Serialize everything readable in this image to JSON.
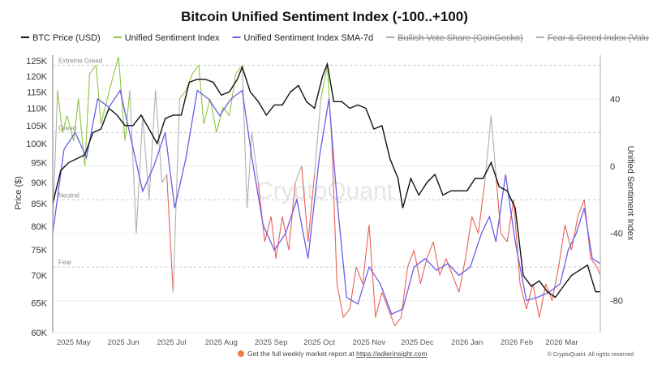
{
  "chart_data": {
    "type": "line",
    "title": "Bitcoin Unified Sentiment Index (-100..+100)",
    "legend": [
      {
        "name": "BTC Price (USD)",
        "color": "#111111",
        "visible": true
      },
      {
        "name": "Unified Sentiment Index",
        "color": "#8cc63f",
        "visible": true
      },
      {
        "name": "Unified Sentiment Index SMA-7d",
        "color": "#6b5ce7",
        "visible": true
      },
      {
        "name": "Bullish Vote Share (CoinGecko)",
        "color": "#999999",
        "visible": false
      },
      {
        "name": "Fear & Greed Index (Value)",
        "color": "#999999",
        "visible": false
      }
    ],
    "legend_placement": "top",
    "y_left": {
      "label": "Price ($)",
      "scale": "log",
      "range": [
        60000,
        127000
      ],
      "ticks": [
        125000,
        120000,
        115000,
        110000,
        105000,
        100000,
        95000,
        90000,
        85000,
        80000,
        75000,
        70000,
        65000,
        60000
      ],
      "tick_labels": [
        "125K",
        "120K",
        "115K",
        "110K",
        "105K",
        "100K",
        "95K",
        "90K",
        "85K",
        "80K",
        "75K",
        "70K",
        "65K",
        "60K"
      ]
    },
    "y_right": {
      "label": "Unified Sentiment Index",
      "range": [
        -99,
        66
      ],
      "ticks": [
        40,
        0,
        -40,
        -80
      ],
      "tick_labels": [
        "40",
        "0",
        "-40",
        "-80"
      ]
    },
    "x": {
      "range": [
        "2025-04-18",
        "2026-03-25"
      ],
      "ticks": [
        "2025-05-01",
        "2025-06-01",
        "2025-07-01",
        "2025-08-01",
        "2025-09-01",
        "2025-10-01",
        "2025-11-01",
        "2025-12-01",
        "2026-01-01",
        "2026-02-01",
        "2026-03-01"
      ],
      "tick_labels": [
        "2025 May",
        "2025 Jun",
        "2025 Jul",
        "2025 Aug",
        "2025 Sep",
        "2025 Oct",
        "2025 Nov",
        "2025 Dec",
        "2026 Jan",
        "2026 Feb",
        "2026 Mar"
      ]
    },
    "zones": [
      {
        "label": "Extreme Greed",
        "value": 60
      },
      {
        "label": "Greed",
        "value": 20
      },
      {
        "label": "Neutral",
        "value": -20
      },
      {
        "label": "Fear",
        "value": -60
      }
    ],
    "zone_colors": {
      "greed": "#8cc63f",
      "neutral": "#b0b0b0",
      "fear": "#e8625a"
    },
    "series": [
      {
        "name": "BTC Price (USD)",
        "axis": "left",
        "points": [
          [
            "2025-04-18",
            85000
          ],
          [
            "2025-04-23",
            93000
          ],
          [
            "2025-04-28",
            95000
          ],
          [
            "2025-05-03",
            96000
          ],
          [
            "2025-05-08",
            97000
          ],
          [
            "2025-05-13",
            103000
          ],
          [
            "2025-05-18",
            104000
          ],
          [
            "2025-05-23",
            110000
          ],
          [
            "2025-05-28",
            108000
          ],
          [
            "2025-06-02",
            105000
          ],
          [
            "2025-06-07",
            105000
          ],
          [
            "2025-06-12",
            108000
          ],
          [
            "2025-06-17",
            104000
          ],
          [
            "2025-06-22",
            100000
          ],
          [
            "2025-06-27",
            107000
          ],
          [
            "2025-07-02",
            108000
          ],
          [
            "2025-07-07",
            108000
          ],
          [
            "2025-07-12",
            118000
          ],
          [
            "2025-07-17",
            119000
          ],
          [
            "2025-07-22",
            119000
          ],
          [
            "2025-07-27",
            118000
          ],
          [
            "2025-08-01",
            114000
          ],
          [
            "2025-08-06",
            115000
          ],
          [
            "2025-08-11",
            119000
          ],
          [
            "2025-08-14",
            123000
          ],
          [
            "2025-08-19",
            115000
          ],
          [
            "2025-08-24",
            112000
          ],
          [
            "2025-08-29",
            108000
          ],
          [
            "2025-09-03",
            111000
          ],
          [
            "2025-09-08",
            111000
          ],
          [
            "2025-09-13",
            115000
          ],
          [
            "2025-09-18",
            117000
          ],
          [
            "2025-09-23",
            112000
          ],
          [
            "2025-09-28",
            110000
          ],
          [
            "2025-10-03",
            120000
          ],
          [
            "2025-10-06",
            124000
          ],
          [
            "2025-10-10",
            112000
          ],
          [
            "2025-10-15",
            112000
          ],
          [
            "2025-10-20",
            110000
          ],
          [
            "2025-10-25",
            111000
          ],
          [
            "2025-10-30",
            110000
          ],
          [
            "2025-11-04",
            104000
          ],
          [
            "2025-11-09",
            105000
          ],
          [
            "2025-11-14",
            96000
          ],
          [
            "2025-11-19",
            91000
          ],
          [
            "2025-11-22",
            84000
          ],
          [
            "2025-11-27",
            91000
          ],
          [
            "2025-12-02",
            87000
          ],
          [
            "2025-12-07",
            90000
          ],
          [
            "2025-12-12",
            92000
          ],
          [
            "2025-12-17",
            87000
          ],
          [
            "2025-12-22",
            88000
          ],
          [
            "2025-12-27",
            88000
          ],
          [
            "2026-01-01",
            88000
          ],
          [
            "2026-01-06",
            91000
          ],
          [
            "2026-01-11",
            91000
          ],
          [
            "2026-01-16",
            95000
          ],
          [
            "2026-01-21",
            89000
          ],
          [
            "2026-01-26",
            88000
          ],
          [
            "2026-01-31",
            84000
          ],
          [
            "2026-02-05",
            70000
          ],
          [
            "2026-02-10",
            68000
          ],
          [
            "2026-02-15",
            69000
          ],
          [
            "2026-02-20",
            67000
          ],
          [
            "2026-02-25",
            66000
          ],
          [
            "2026-03-02",
            68000
          ],
          [
            "2026-03-07",
            70000
          ],
          [
            "2026-03-12",
            71000
          ],
          [
            "2026-03-17",
            72000
          ],
          [
            "2026-03-22",
            67000
          ],
          [
            "2026-03-25",
            67000
          ]
        ]
      },
      {
        "name": "Unified Sentiment Index",
        "axis": "right",
        "points": [
          [
            "2025-04-18",
            -35
          ],
          [
            "2025-04-21",
            45
          ],
          [
            "2025-04-24",
            20
          ],
          [
            "2025-04-27",
            30
          ],
          [
            "2025-05-01",
            15
          ],
          [
            "2025-05-04",
            40
          ],
          [
            "2025-05-08",
            0
          ],
          [
            "2025-05-11",
            55
          ],
          [
            "2025-05-15",
            60
          ],
          [
            "2025-05-18",
            25
          ],
          [
            "2025-05-22",
            40
          ],
          [
            "2025-05-26",
            55
          ],
          [
            "2025-05-29",
            65
          ],
          [
            "2025-06-02",
            15
          ],
          [
            "2025-06-05",
            45
          ],
          [
            "2025-06-09",
            -40
          ],
          [
            "2025-06-13",
            30
          ],
          [
            "2025-06-17",
            -20
          ],
          [
            "2025-06-21",
            45
          ],
          [
            "2025-06-25",
            -10
          ],
          [
            "2025-06-28",
            -5
          ],
          [
            "2025-07-02",
            -75
          ],
          [
            "2025-07-06",
            40
          ],
          [
            "2025-07-10",
            45
          ],
          [
            "2025-07-14",
            55
          ],
          [
            "2025-07-18",
            60
          ],
          [
            "2025-07-21",
            25
          ],
          [
            "2025-07-25",
            40
          ],
          [
            "2025-07-29",
            20
          ],
          [
            "2025-08-02",
            35
          ],
          [
            "2025-08-06",
            30
          ],
          [
            "2025-08-10",
            55
          ],
          [
            "2025-08-14",
            60
          ],
          [
            "2025-08-17",
            -25
          ],
          [
            "2025-08-20",
            20
          ],
          [
            "2025-08-24",
            -10
          ],
          [
            "2025-08-28",
            -45
          ],
          [
            "2025-09-01",
            -30
          ],
          [
            "2025-09-04",
            -55
          ],
          [
            "2025-09-08",
            -30
          ],
          [
            "2025-09-12",
            -50
          ],
          [
            "2025-09-16",
            -10
          ],
          [
            "2025-09-20",
            0
          ],
          [
            "2025-09-24",
            -45
          ],
          [
            "2025-09-28",
            -5
          ],
          [
            "2025-10-02",
            40
          ],
          [
            "2025-10-06",
            60
          ],
          [
            "2025-10-09",
            10
          ],
          [
            "2025-10-12",
            -70
          ],
          [
            "2025-10-16",
            -90
          ],
          [
            "2025-10-20",
            -85
          ],
          [
            "2025-10-24",
            -60
          ],
          [
            "2025-10-28",
            -70
          ],
          [
            "2025-11-01",
            -35
          ],
          [
            "2025-11-05",
            -90
          ],
          [
            "2025-11-09",
            -75
          ],
          [
            "2025-11-13",
            -85
          ],
          [
            "2025-11-17",
            -95
          ],
          [
            "2025-11-21",
            -90
          ],
          [
            "2025-11-25",
            -60
          ],
          [
            "2025-11-29",
            -50
          ],
          [
            "2025-12-03",
            -70
          ],
          [
            "2025-12-07",
            -55
          ],
          [
            "2025-12-11",
            -45
          ],
          [
            "2025-12-15",
            -65
          ],
          [
            "2025-12-19",
            -55
          ],
          [
            "2025-12-23",
            -65
          ],
          [
            "2025-12-27",
            -75
          ],
          [
            "2025-12-31",
            -55
          ],
          [
            "2026-01-04",
            -30
          ],
          [
            "2026-01-08",
            -40
          ],
          [
            "2026-01-12",
            -10
          ],
          [
            "2026-01-16",
            30
          ],
          [
            "2026-01-19",
            -5
          ],
          [
            "2026-01-22",
            -40
          ],
          [
            "2026-01-26",
            -45
          ],
          [
            "2026-01-30",
            -20
          ],
          [
            "2026-02-03",
            -70
          ],
          [
            "2026-02-07",
            -85
          ],
          [
            "2026-02-11",
            -70
          ],
          [
            "2026-02-15",
            -90
          ],
          [
            "2026-02-19",
            -70
          ],
          [
            "2026-02-23",
            -80
          ],
          [
            "2026-02-27",
            -60
          ],
          [
            "2026-03-03",
            -35
          ],
          [
            "2026-03-07",
            -50
          ],
          [
            "2026-03-11",
            -30
          ],
          [
            "2026-03-15",
            -20
          ],
          [
            "2026-03-19",
            -55
          ],
          [
            "2026-03-23",
            -60
          ],
          [
            "2026-03-25",
            -65
          ]
        ]
      },
      {
        "name": "Unified Sentiment Index SMA-7d",
        "axis": "right",
        "points": [
          [
            "2025-04-18",
            -40
          ],
          [
            "2025-04-25",
            10
          ],
          [
            "2025-05-02",
            20
          ],
          [
            "2025-05-09",
            5
          ],
          [
            "2025-05-16",
            40
          ],
          [
            "2025-05-23",
            35
          ],
          [
            "2025-05-30",
            45
          ],
          [
            "2025-06-06",
            15
          ],
          [
            "2025-06-13",
            -15
          ],
          [
            "2025-06-20",
            0
          ],
          [
            "2025-06-27",
            20
          ],
          [
            "2025-07-03",
            -25
          ],
          [
            "2025-07-10",
            5
          ],
          [
            "2025-07-17",
            45
          ],
          [
            "2025-07-24",
            40
          ],
          [
            "2025-07-31",
            30
          ],
          [
            "2025-08-07",
            40
          ],
          [
            "2025-08-14",
            45
          ],
          [
            "2025-08-20",
            5
          ],
          [
            "2025-08-27",
            -35
          ],
          [
            "2025-09-03",
            -50
          ],
          [
            "2025-09-10",
            -40
          ],
          [
            "2025-09-17",
            -20
          ],
          [
            "2025-09-24",
            -55
          ],
          [
            "2025-10-01",
            5
          ],
          [
            "2025-10-07",
            40
          ],
          [
            "2025-10-12",
            -20
          ],
          [
            "2025-10-18",
            -78
          ],
          [
            "2025-10-25",
            -82
          ],
          [
            "2025-11-01",
            -60
          ],
          [
            "2025-11-08",
            -70
          ],
          [
            "2025-11-15",
            -88
          ],
          [
            "2025-11-22",
            -85
          ],
          [
            "2025-11-29",
            -60
          ],
          [
            "2025-12-06",
            -55
          ],
          [
            "2025-12-13",
            -62
          ],
          [
            "2025-12-20",
            -58
          ],
          [
            "2025-12-27",
            -65
          ],
          [
            "2026-01-03",
            -60
          ],
          [
            "2026-01-10",
            -40
          ],
          [
            "2026-01-15",
            -30
          ],
          [
            "2026-01-19",
            -45
          ],
          [
            "2026-01-25",
            -5
          ],
          [
            "2026-01-31",
            -45
          ],
          [
            "2026-02-07",
            -80
          ],
          [
            "2026-02-14",
            -78
          ],
          [
            "2026-02-21",
            -75
          ],
          [
            "2026-02-28",
            -70
          ],
          [
            "2026-03-05",
            -50
          ],
          [
            "2026-03-10",
            -40
          ],
          [
            "2026-03-15",
            -25
          ],
          [
            "2026-03-20",
            -55
          ],
          [
            "2026-03-25",
            -58
          ]
        ]
      }
    ],
    "grid": true,
    "watermark": "CryptoQuant"
  },
  "footer": {
    "text": "Get the full weekly market report at ",
    "link": "https://adlerinsight.com",
    "copyright": "© CryptoQuant. All rights reserved"
  }
}
